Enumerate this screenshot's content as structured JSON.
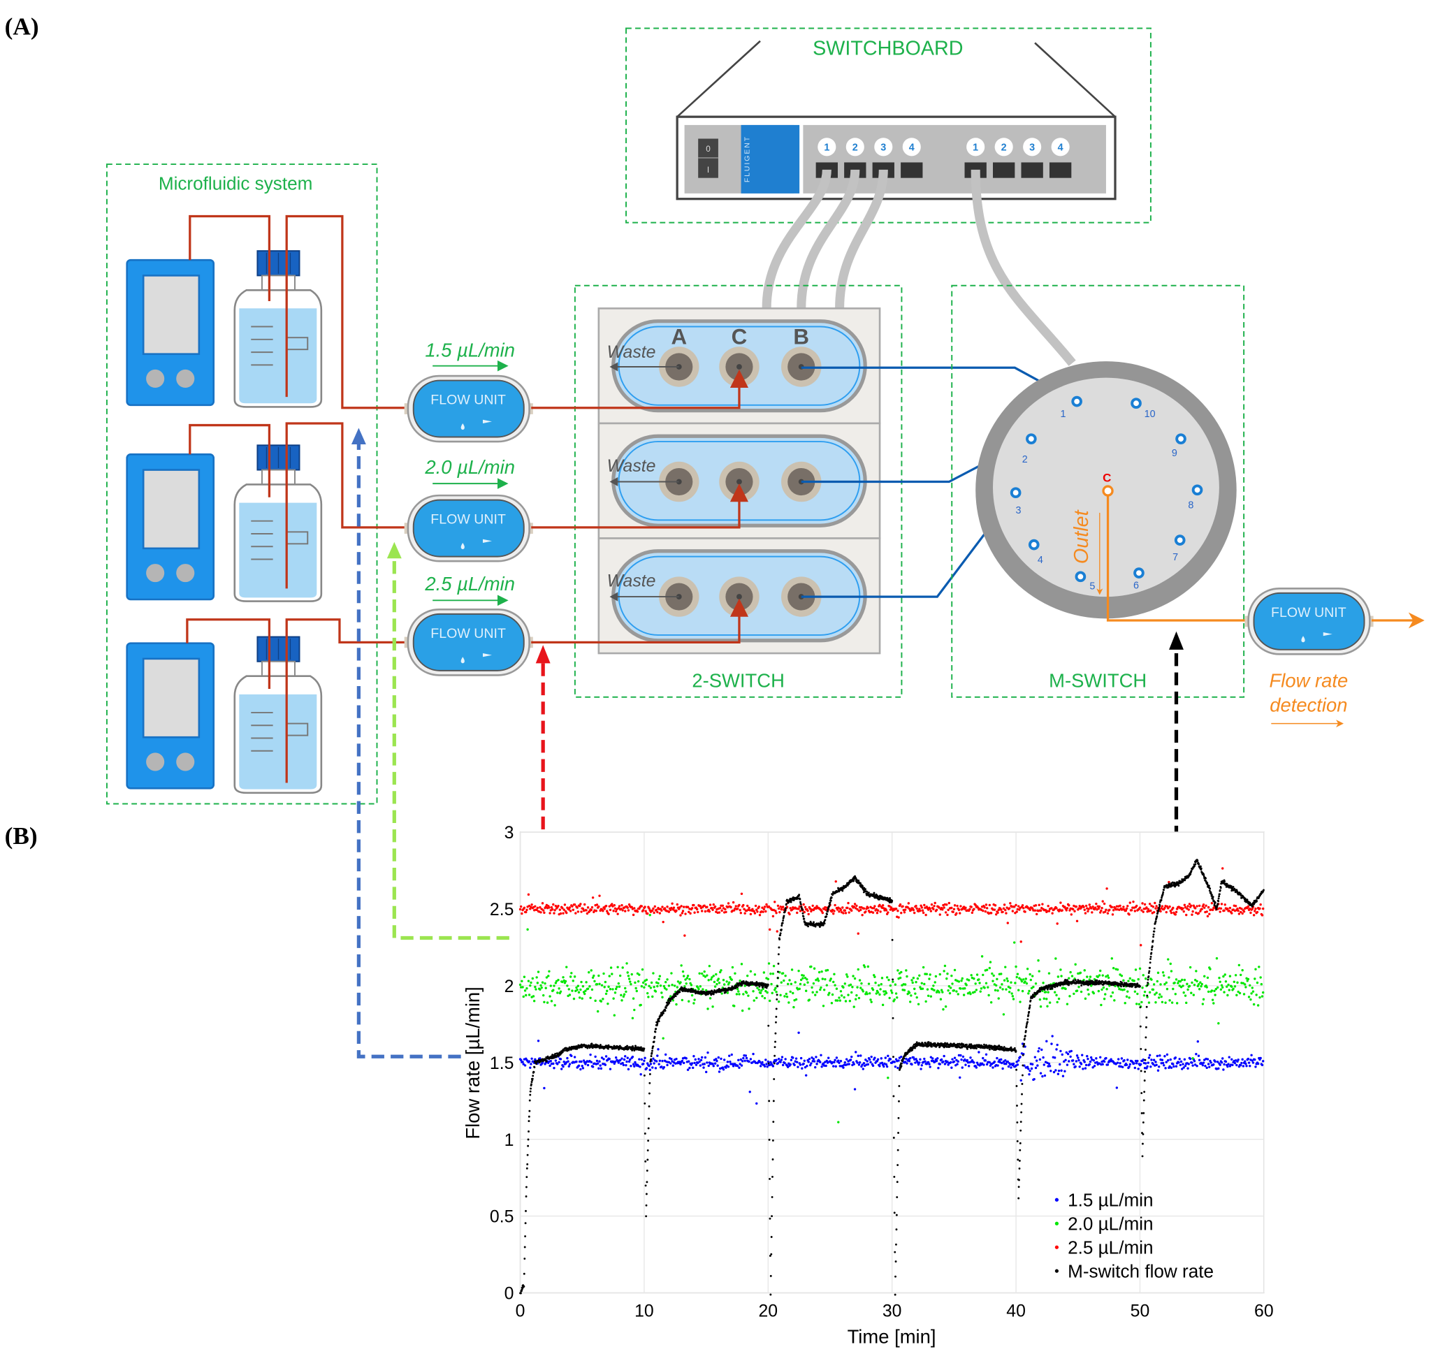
{
  "panel_labels": {
    "a": "(A)",
    "b": "(B)"
  },
  "diagram": {
    "switchboard": {
      "title": "SWITCHBOARD",
      "brand": "FLUIGENT",
      "power_switch": [
        "0",
        "I"
      ],
      "ports_left": [
        "1",
        "2",
        "3",
        "4"
      ],
      "ports_right": [
        "1",
        "2",
        "3",
        "4"
      ]
    },
    "microfluidic": {
      "title": "Microfluidic system"
    },
    "flow_units": [
      {
        "label": "FLOW UNIT",
        "rate": "1.5 µL/min"
      },
      {
        "label": "FLOW UNIT",
        "rate": "2.0 µL/min"
      },
      {
        "label": "FLOW UNIT",
        "rate": "2.5 µL/min"
      }
    ],
    "two_switch": {
      "title": "2-SWITCH",
      "port_labels": [
        "A",
        "C",
        "B"
      ],
      "waste_label": "Waste"
    },
    "m_switch": {
      "title": "M-SWITCH",
      "ports": [
        "1",
        "2",
        "3",
        "4",
        "5",
        "6",
        "7",
        "8",
        "9",
        "10"
      ],
      "center": "C",
      "outlet": "Outlet"
    },
    "detection": {
      "flow_unit": "FLOW UNIT",
      "line1": "Flow rate",
      "line2": "detection"
    },
    "colors": {
      "box_border": "#1db14b",
      "tubing_in": "#c0361a",
      "tubing_switch": "#0a5bb0",
      "outlet": "#f58a1f",
      "device_blue": "#2a9de4",
      "link_blue": "#4472c4",
      "link_green": "#9be550",
      "link_red": "#e8141b",
      "link_black": "#000000"
    }
  },
  "chart_data": {
    "type": "scatter",
    "xlabel": "Time [min]",
    "ylabel": "Flow rate [µL/min]",
    "xlim": [
      0,
      60
    ],
    "ylim": [
      0,
      3
    ],
    "xticks": [
      "0",
      "10",
      "20",
      "30",
      "40",
      "50",
      "60"
    ],
    "yticks": [
      "0",
      "0.5",
      "1",
      "1.5",
      "2",
      "2.5",
      "3"
    ],
    "grid": true,
    "legend_position": "bottom-right",
    "series": [
      {
        "name": "1.5 µL/min",
        "color": "#0000ff",
        "level": 1.5,
        "spread": 0.03
      },
      {
        "name": "2.0 µL/min",
        "color": "#00e600",
        "level": 2.0,
        "spread": 0.09
      },
      {
        "name": "2.5 µL/min",
        "color": "#ff0000",
        "level": 2.5,
        "spread": 0.025
      },
      {
        "name": "M-switch flow rate",
        "color": "#000000",
        "points": [
          [
            0,
            0
          ],
          [
            0.3,
            0.05
          ],
          [
            0.5,
            0.7
          ],
          [
            0.8,
            1.3
          ],
          [
            1.2,
            1.5
          ],
          [
            3,
            1.55
          ],
          [
            3.5,
            1.58
          ],
          [
            5,
            1.61
          ],
          [
            7,
            1.6
          ],
          [
            10,
            1.59
          ],
          [
            10.15,
            0.5
          ],
          [
            10.5,
            1.5
          ],
          [
            11,
            1.75
          ],
          [
            12,
            1.9
          ],
          [
            13,
            1.98
          ],
          [
            15,
            1.95
          ],
          [
            17,
            1.98
          ],
          [
            18,
            2.02
          ],
          [
            20,
            2.0
          ],
          [
            20.2,
            0.0
          ],
          [
            20.5,
            1.5
          ],
          [
            20.9,
            2.3
          ],
          [
            21.5,
            2.55
          ],
          [
            22.5,
            2.58
          ],
          [
            23,
            2.4
          ],
          [
            24.5,
            2.4
          ],
          [
            25.2,
            2.6
          ],
          [
            26,
            2.63
          ],
          [
            27,
            2.7
          ],
          [
            28,
            2.6
          ],
          [
            30,
            2.55
          ],
          [
            30.25,
            0.0
          ],
          [
            30.6,
            1.45
          ],
          [
            31,
            1.55
          ],
          [
            32,
            1.62
          ],
          [
            35,
            1.61
          ],
          [
            38,
            1.6
          ],
          [
            40,
            1.58
          ],
          [
            40.2,
            0.62
          ],
          [
            40.6,
            1.6
          ],
          [
            41.2,
            1.92
          ],
          [
            42,
            1.98
          ],
          [
            44,
            2.02
          ],
          [
            47,
            2.02
          ],
          [
            50,
            2.0
          ],
          [
            50.2,
            0.9
          ],
          [
            50.6,
            2.0
          ],
          [
            51.2,
            2.4
          ],
          [
            52,
            2.65
          ],
          [
            53,
            2.66
          ],
          [
            54,
            2.72
          ],
          [
            54.6,
            2.82
          ],
          [
            55.5,
            2.65
          ],
          [
            56.2,
            2.5
          ],
          [
            56.6,
            2.68
          ],
          [
            58,
            2.6
          ],
          [
            59,
            2.52
          ],
          [
            60,
            2.62
          ]
        ]
      }
    ]
  }
}
